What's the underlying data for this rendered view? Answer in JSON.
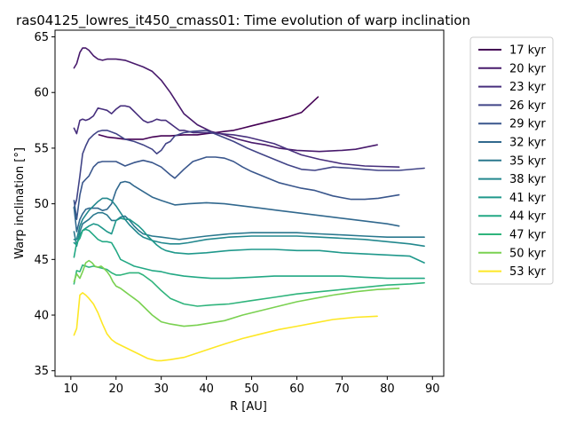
{
  "chart_data": {
    "type": "line",
    "title": "ras04125_lowres_it450_cmass01: Time evolution of warp inclination",
    "xlabel": "R [AU]",
    "ylabel": "Warp inclination [°]",
    "xlim": [
      6.5,
      92.5
    ],
    "ylim": [
      34.5,
      65.6
    ],
    "xticks": [
      10,
      20,
      30,
      40,
      50,
      60,
      70,
      80,
      90
    ],
    "yticks": [
      35,
      40,
      45,
      50,
      55,
      60,
      65
    ],
    "legend_position": "right",
    "grid": false,
    "series": [
      {
        "name": "17 kyr",
        "color": "#440154",
        "x": [
          16.2,
          18.0,
          20.0,
          22.0,
          24.0,
          26.0,
          28.0,
          30.0,
          32.0,
          35.0,
          38.0,
          40.0,
          42.0,
          44.0,
          46.0,
          48.0,
          50.0,
          52.0,
          54.0,
          56.0,
          58.0,
          61.0,
          64.7
        ],
        "y": [
          56.2,
          56.0,
          55.9,
          55.8,
          55.8,
          55.8,
          56.0,
          56.1,
          56.1,
          56.2,
          56.2,
          56.3,
          56.4,
          56.5,
          56.6,
          56.8,
          57.0,
          57.2,
          57.4,
          57.6,
          57.8,
          58.2,
          59.6
        ]
      },
      {
        "name": "20 kyr",
        "color": "#481a6c",
        "x": [
          10.7,
          11.3,
          12.0,
          12.6,
          13.3,
          14.0,
          15.0,
          16.0,
          17.0,
          18.0,
          20.0,
          22.0,
          24.0,
          26.0,
          28.0,
          30.0,
          32.0,
          35.0,
          38.0,
          41.0,
          44.0,
          47.0,
          50.0,
          53.0,
          56.0,
          60.0,
          65.0,
          70.0,
          73.0,
          77.8
        ],
        "y": [
          62.2,
          62.6,
          63.6,
          64.0,
          64.0,
          63.8,
          63.3,
          63.0,
          62.9,
          63.0,
          63.0,
          62.9,
          62.6,
          62.3,
          61.9,
          61.1,
          60.0,
          58.1,
          57.1,
          56.5,
          56.2,
          55.8,
          55.5,
          55.3,
          55.0,
          54.8,
          54.7,
          54.8,
          54.9,
          55.3
        ]
      },
      {
        "name": "23 kyr",
        "color": "#472f7d",
        "x": [
          10.7,
          11.3,
          12.0,
          12.6,
          13.3,
          14.0,
          15.0,
          16.0,
          17.0,
          18.0,
          19.0,
          20.0,
          21.0,
          22.0,
          23.0,
          24.0,
          25.0,
          26.0,
          27.0,
          28.0,
          29.0,
          30.0,
          31.0,
          32.0,
          33.0,
          34.0,
          35.0,
          37.0,
          40.0,
          43.0,
          46.0,
          49.0,
          52.0,
          55.0,
          58.0,
          61.0,
          65.0,
          70.0,
          75.0,
          82.6
        ],
        "y": [
          56.8,
          56.3,
          57.5,
          57.6,
          57.5,
          57.6,
          57.9,
          58.6,
          58.5,
          58.4,
          58.1,
          58.5,
          58.8,
          58.8,
          58.7,
          58.3,
          57.9,
          57.5,
          57.3,
          57.4,
          57.6,
          57.5,
          57.5,
          57.2,
          56.9,
          56.6,
          56.6,
          56.4,
          56.4,
          56.3,
          56.2,
          56.0,
          55.7,
          55.4,
          54.9,
          54.4,
          54.0,
          53.6,
          53.4,
          53.3
        ]
      },
      {
        "name": "26 kyr",
        "color": "#414487",
        "x": [
          10.7,
          11.3,
          12.0,
          12.6,
          13.3,
          14.0,
          15.0,
          16.0,
          17.0,
          18.0,
          20.0,
          22.0,
          24.0,
          26.0,
          28.0,
          29.0,
          30.0,
          31.0,
          32.0,
          33.0,
          35.0,
          37.0,
          40.0,
          43.0,
          46.0,
          49.0,
          52.0,
          55.0,
          58.0,
          61.0,
          64.0,
          68.0,
          72.0,
          75.0,
          78.0,
          82.6,
          88.2
        ],
        "y": [
          49.6,
          50.4,
          52.5,
          54.5,
          55.2,
          55.8,
          56.2,
          56.5,
          56.6,
          56.6,
          56.3,
          55.8,
          55.6,
          55.3,
          54.9,
          54.5,
          54.8,
          55.4,
          55.6,
          56.1,
          56.4,
          56.5,
          56.6,
          56.1,
          55.6,
          55.0,
          54.5,
          54.0,
          53.5,
          53.1,
          53.0,
          53.3,
          53.2,
          53.1,
          53.0,
          53.0,
          53.2
        ]
      },
      {
        "name": "29 kyr",
        "color": "#39568c",
        "x": [
          10.7,
          11.3,
          12.0,
          12.6,
          13.3,
          14.0,
          15.0,
          16.0,
          17.0,
          18.0,
          20.0,
          22.0,
          24.0,
          26.0,
          28.0,
          30.0,
          32.0,
          33.0,
          35.0,
          37.0,
          40.0,
          42.0,
          44.0,
          46.0,
          48.0,
          50.0,
          53.0,
          56.0,
          59.0,
          61.0,
          64.0,
          68.0,
          72.0,
          75.0,
          78.0,
          82.6
        ],
        "y": [
          50.3,
          48.6,
          50.8,
          51.9,
          52.2,
          52.5,
          53.3,
          53.7,
          53.8,
          53.8,
          53.8,
          53.4,
          53.7,
          53.9,
          53.7,
          53.3,
          52.6,
          52.3,
          53.1,
          53.8,
          54.2,
          54.2,
          54.1,
          53.8,
          53.3,
          52.9,
          52.4,
          51.9,
          51.6,
          51.4,
          51.2,
          50.7,
          50.4,
          50.4,
          50.5,
          50.8
        ]
      },
      {
        "name": "32 kyr",
        "color": "#31688e",
        "x": [
          10.7,
          11.3,
          12.0,
          12.6,
          13.3,
          14.0,
          15.0,
          16.0,
          17.0,
          18.0,
          19.0,
          20.0,
          21.0,
          22.0,
          23.0,
          24.0,
          26.0,
          28.0,
          30.0,
          33.0,
          36.0,
          40.0,
          44.0,
          48.0,
          52.0,
          56.0,
          60.0,
          64.0,
          68.0,
          72.0,
          76.0,
          80.0,
          82.6
        ],
        "y": [
          49.7,
          47.5,
          48.6,
          49.1,
          49.5,
          49.6,
          49.6,
          49.6,
          49.4,
          49.5,
          50.0,
          51.2,
          51.9,
          52.0,
          51.9,
          51.6,
          51.1,
          50.6,
          50.3,
          49.9,
          50.0,
          50.1,
          50.0,
          49.8,
          49.6,
          49.4,
          49.2,
          49.0,
          48.8,
          48.6,
          48.4,
          48.2,
          48.0
        ]
      },
      {
        "name": "35 kyr",
        "color": "#2a788e",
        "x": [
          10.7,
          11.3,
          12.0,
          12.6,
          13.3,
          14.0,
          15.0,
          16.0,
          17.0,
          18.0,
          19.0,
          20.0,
          21.0,
          22.0,
          23.0,
          24.0,
          25.0,
          26.0,
          28.0,
          30.0,
          32.0,
          34.0,
          36.0,
          40.0,
          45.0,
          50.0,
          55.0,
          60.0,
          65.0,
          70.0,
          75.0,
          80.0,
          88.2
        ],
        "y": [
          47.5,
          46.2,
          47.5,
          48.2,
          48.4,
          48.6,
          49.0,
          49.2,
          49.2,
          49.0,
          48.5,
          48.5,
          48.8,
          48.9,
          48.5,
          48.0,
          47.6,
          47.3,
          47.1,
          47.0,
          46.9,
          46.8,
          46.9,
          47.1,
          47.3,
          47.4,
          47.4,
          47.4,
          47.3,
          47.2,
          47.1,
          47.0,
          47.0
        ]
      },
      {
        "name": "38 kyr",
        "color": "#23888e",
        "x": [
          10.7,
          11.3,
          12.0,
          12.6,
          13.3,
          14.0,
          15.0,
          16.0,
          17.0,
          18.0,
          19.0,
          20.0,
          21.0,
          22.0,
          23.0,
          24.0,
          25.0,
          26.0,
          28.0,
          30.0,
          32.0,
          34.0,
          36.0,
          40.0,
          45.0,
          50.0,
          55.0,
          60.0,
          65.0,
          70.0,
          75.0,
          80.0,
          85.0,
          88.2
        ],
        "y": [
          46.8,
          46.8,
          48.0,
          48.6,
          49.0,
          49.4,
          49.8,
          50.2,
          50.5,
          50.5,
          50.3,
          49.8,
          49.2,
          48.6,
          48.1,
          47.7,
          47.3,
          47.0,
          46.7,
          46.5,
          46.4,
          46.4,
          46.5,
          46.8,
          47.0,
          47.1,
          47.1,
          47.1,
          47.0,
          46.9,
          46.8,
          46.6,
          46.4,
          46.2
        ]
      },
      {
        "name": "41 kyr",
        "color": "#1f988b",
        "x": [
          10.7,
          11.3,
          12.0,
          12.6,
          13.3,
          14.0,
          15.0,
          16.0,
          17.0,
          18.0,
          19.0,
          20.0,
          21.0,
          22.0,
          23.0,
          24.0,
          25.0,
          26.0,
          27.0,
          28.0,
          29.0,
          30.0,
          31.0,
          33.0,
          36.0,
          40.0,
          45.0,
          50.0,
          55.0,
          60.0,
          65.0,
          70.0,
          75.0,
          80.0,
          85.0,
          88.2
        ],
        "y": [
          46.5,
          46.3,
          47.2,
          47.6,
          47.8,
          48.0,
          48.2,
          48.1,
          47.8,
          47.5,
          47.3,
          48.5,
          48.7,
          48.6,
          48.6,
          48.3,
          48.0,
          47.6,
          47.1,
          46.7,
          46.3,
          46.0,
          45.8,
          45.6,
          45.5,
          45.6,
          45.8,
          45.9,
          45.9,
          45.8,
          45.8,
          45.6,
          45.5,
          45.4,
          45.3,
          44.7
        ]
      },
      {
        "name": "44 kyr",
        "color": "#22a884",
        "x": [
          10.7,
          11.3,
          12.0,
          12.6,
          13.3,
          14.0,
          15.0,
          16.0,
          17.0,
          18.0,
          19.0,
          20.0,
          21.0,
          22.0,
          23.0,
          24.0,
          25.0,
          26.0,
          27.0,
          28.0,
          30.0,
          32.0,
          35.0,
          38.0,
          41.0,
          45.0,
          50.0,
          55.0,
          60.0,
          65.0,
          70.0,
          75.0,
          80.0,
          85.0,
          88.2
        ],
        "y": [
          45.2,
          46.5,
          46.9,
          47.6,
          47.7,
          47.6,
          47.2,
          46.8,
          46.6,
          46.6,
          46.5,
          45.8,
          45.0,
          44.8,
          44.6,
          44.4,
          44.3,
          44.2,
          44.1,
          44.0,
          43.9,
          43.7,
          43.5,
          43.4,
          43.3,
          43.3,
          43.4,
          43.5,
          43.5,
          43.5,
          43.5,
          43.4,
          43.3,
          43.3,
          43.3
        ]
      },
      {
        "name": "47 kyr",
        "color": "#2fb47c",
        "x": [
          10.7,
          11.3,
          12.0,
          12.6,
          13.3,
          14.0,
          15.0,
          16.0,
          17.0,
          18.0,
          19.0,
          20.0,
          21.0,
          22.0,
          23.0,
          24.0,
          25.0,
          26.0,
          27.0,
          28.0,
          30.0,
          32.0,
          35.0,
          38.0,
          41.0,
          45.0,
          50.0,
          55.0,
          60.0,
          65.0,
          70.0,
          75.0,
          80.0,
          85.0,
          88.2
        ],
        "y": [
          42.8,
          44.0,
          43.9,
          44.5,
          44.4,
          44.3,
          44.4,
          44.3,
          44.2,
          44.1,
          43.8,
          43.6,
          43.6,
          43.7,
          43.8,
          43.8,
          43.8,
          43.6,
          43.3,
          43.0,
          42.2,
          41.5,
          41.0,
          40.8,
          40.9,
          41.0,
          41.3,
          41.6,
          41.9,
          42.1,
          42.3,
          42.5,
          42.7,
          42.8,
          42.9
        ]
      },
      {
        "name": "50 kyr",
        "color": "#7ad151",
        "x": [
          10.7,
          11.3,
          12.0,
          12.6,
          13.3,
          14.0,
          14.7,
          15.3,
          16.0,
          16.7,
          17.3,
          18.0,
          18.7,
          19.3,
          20.0,
          21.0,
          22.0,
          23.0,
          24.0,
          25.0,
          26.0,
          27.0,
          28.0,
          29.0,
          30.0,
          32.0,
          35.0,
          38.0,
          41.0,
          44.0,
          48.0,
          52.0,
          56.0,
          60.0,
          64.0,
          68.0,
          73.0,
          77.8,
          82.6
        ],
        "y": [
          43.0,
          43.7,
          43.3,
          43.9,
          44.7,
          44.9,
          44.7,
          44.4,
          44.3,
          44.4,
          44.2,
          43.9,
          43.5,
          43.0,
          42.6,
          42.4,
          42.1,
          41.8,
          41.5,
          41.2,
          40.8,
          40.4,
          40.0,
          39.7,
          39.4,
          39.2,
          39.0,
          39.1,
          39.3,
          39.5,
          40.0,
          40.4,
          40.8,
          41.2,
          41.5,
          41.8,
          42.1,
          42.3,
          42.4
        ]
      },
      {
        "name": "53 kyr",
        "color": "#fde725",
        "x": [
          10.7,
          11.3,
          12.0,
          12.6,
          13.3,
          14.0,
          15.0,
          16.0,
          17.0,
          18.0,
          19.0,
          20.0,
          21.0,
          22.0,
          23.0,
          24.0,
          25.0,
          26.0,
          27.0,
          28.0,
          29.0,
          30.0,
          32.0,
          35.0,
          38.0,
          41.0,
          44.0,
          48.0,
          52.0,
          56.0,
          60.0,
          64.0,
          68.0,
          73.0,
          77.8
        ],
        "y": [
          38.2,
          38.8,
          41.8,
          42.0,
          41.8,
          41.5,
          41.0,
          40.2,
          39.2,
          38.3,
          37.8,
          37.5,
          37.3,
          37.1,
          36.9,
          36.7,
          36.5,
          36.3,
          36.1,
          36.0,
          35.9,
          35.9,
          36.0,
          36.2,
          36.6,
          37.0,
          37.4,
          37.9,
          38.3,
          38.7,
          39.0,
          39.3,
          39.6,
          39.8,
          39.9
        ]
      }
    ]
  }
}
